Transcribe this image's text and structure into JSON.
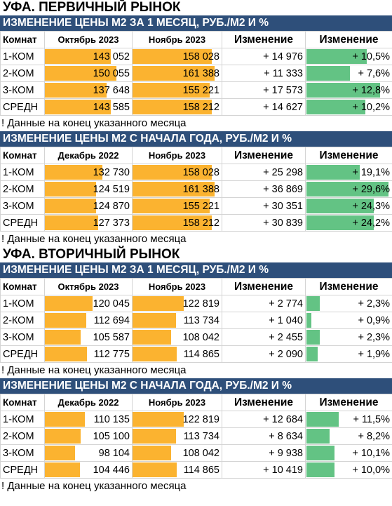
{
  "colors": {
    "header_bg": "#2e4f7a",
    "bar_price": "#fbb330",
    "bar_change": "#63c384"
  },
  "primary": {
    "title": "УФА. ПЕРВИЧНЫЙ РЫНОК",
    "monthly": {
      "header": "ИЗМЕНЕНИЕ ЦЕНЫ М2 ЗА 1 МЕСЯЦ, РУБ./М2 И %",
      "columns": [
        "Комнат",
        "Октябрь 2023",
        "Ноябрь 2023",
        "Изменение",
        "Изменение"
      ],
      "rows": [
        {
          "room": "1-КОМ",
          "a": "143 052",
          "b": "158 028",
          "delta": "+ 14 976",
          "pct": "+ 10,5%",
          "a_val": 143052,
          "b_val": 158028,
          "pct_val": 10.5
        },
        {
          "room": "2-КОМ",
          "a": "150 055",
          "b": "161 388",
          "delta": "+ 11 333",
          "pct": "+ 7,6%",
          "a_val": 150055,
          "b_val": 161388,
          "pct_val": 7.6
        },
        {
          "room": "3-КОМ",
          "a": "137 648",
          "b": "155 221",
          "delta": "+ 17 573",
          "pct": "+ 12,8%",
          "a_val": 137648,
          "b_val": 155221,
          "pct_val": 12.8
        },
        {
          "room": "СРЕДН",
          "a": "143 585",
          "b": "158 212",
          "delta": "+ 14 627",
          "pct": "+ 10,2%",
          "a_val": 143585,
          "b_val": 158212,
          "pct_val": 10.2
        }
      ],
      "note": "! Данные на конец указанного месяца"
    },
    "ytd": {
      "header": "ИЗМЕНЕНИЕ ЦЕНЫ М2 С НАЧАЛА ГОДА, РУБ./М2 И %",
      "columns": [
        "Комнат",
        "Декабрь 2022",
        "Ноябрь 2023",
        "Изменение",
        "Изменение"
      ],
      "rows": [
        {
          "room": "1-КОМ",
          "a": "132 730",
          "b": "158 028",
          "delta": "+ 25 298",
          "pct": "+ 19,1%",
          "a_val": 132730,
          "b_val": 158028,
          "pct_val": 19.1
        },
        {
          "room": "2-КОМ",
          "a": "124 519",
          "b": "161 388",
          "delta": "+ 36 869",
          "pct": "+ 29,6%",
          "a_val": 124519,
          "b_val": 161388,
          "pct_val": 29.6
        },
        {
          "room": "3-КОМ",
          "a": "124 870",
          "b": "155 221",
          "delta": "+ 30 351",
          "pct": "+ 24,3%",
          "a_val": 124870,
          "b_val": 155221,
          "pct_val": 24.3
        },
        {
          "room": "СРЕДН",
          "a": "127 373",
          "b": "158 212",
          "delta": "+ 30 839",
          "pct": "+ 24,2%",
          "a_val": 127373,
          "b_val": 158212,
          "pct_val": 24.2
        }
      ],
      "note": "! Данные на конец указанного месяца"
    }
  },
  "secondary": {
    "title": "УФА. ВТОРИЧНЫЙ РЫНОК",
    "monthly": {
      "header": "ИЗМЕНЕНИЕ ЦЕНЫ М2 ЗА 1 МЕСЯЦ, РУБ./М2 И %",
      "columns": [
        "Комнат",
        "Октябрь 2023",
        "Ноябрь 2023",
        "Изменение",
        "Изменение"
      ],
      "rows": [
        {
          "room": "1-КОМ",
          "a": "120 045",
          "b": "122 819",
          "delta": "+ 2 774",
          "pct": "+ 2,3%",
          "a_val": 120045,
          "b_val": 122819,
          "pct_val": 2.3
        },
        {
          "room": "2-КОМ",
          "a": "112 694",
          "b": "113 734",
          "delta": "+ 1 040",
          "pct": "+ 0,9%",
          "a_val": 112694,
          "b_val": 113734,
          "pct_val": 0.9
        },
        {
          "room": "3-КОМ",
          "a": "105 587",
          "b": "108 042",
          "delta": "+ 2 455",
          "pct": "+ 2,3%",
          "a_val": 105587,
          "b_val": 108042,
          "pct_val": 2.3
        },
        {
          "room": "СРЕДН",
          "a": "112 775",
          "b": "114 865",
          "delta": "+ 2 090",
          "pct": "+ 1,9%",
          "a_val": 112775,
          "b_val": 114865,
          "pct_val": 1.9
        }
      ],
      "note": "! Данные на конец указанного месяца"
    },
    "ytd": {
      "header": "ИЗМЕНЕНИЕ ЦЕНЫ М2 С НАЧАЛА ГОДА, РУБ./М2 И %",
      "columns": [
        "Комнат",
        "Декабрь 2022",
        "Ноябрь 2023",
        "Изменение",
        "Изменение"
      ],
      "rows": [
        {
          "room": "1-КОМ",
          "a": "110 135",
          "b": "122 819",
          "delta": "+ 12 684",
          "pct": "+ 11,5%",
          "a_val": 110135,
          "b_val": 122819,
          "pct_val": 11.5
        },
        {
          "room": "2-КОМ",
          "a": "105 100",
          "b": "113 734",
          "delta": "+ 8 634",
          "pct": "+ 8,2%",
          "a_val": 105100,
          "b_val": 113734,
          "pct_val": 8.2
        },
        {
          "room": "3-КОМ",
          "a": "98 104",
          "b": "108 042",
          "delta": "+ 9 938",
          "pct": "+ 10,1%",
          "a_val": 98104,
          "b_val": 108042,
          "pct_val": 10.1
        },
        {
          "room": "СРЕДН",
          "a": "104 446",
          "b": "114 865",
          "delta": "+ 10 419",
          "pct": "+ 10,0%",
          "a_val": 104446,
          "b_val": 114865,
          "pct_val": 10.0
        }
      ],
      "note": "! Данные на конец указанного месяца"
    }
  }
}
